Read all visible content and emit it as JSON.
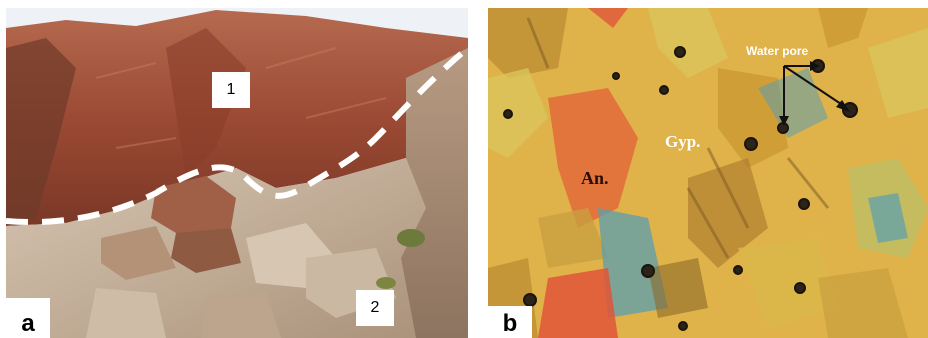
{
  "figure": {
    "panel_a": {
      "letter": "a",
      "zone_labels": [
        "1",
        "2"
      ]
    },
    "panel_b": {
      "letter": "b",
      "mineral_labels": {
        "anhydrite": "An.",
        "gypsum": "Gyp."
      },
      "annotation": "Water pore"
    }
  },
  "colors": {
    "red_sediment": "#9c4a34",
    "rock_beige": "#c9b7a4",
    "sky": "#eef2f6",
    "dashed_line": "#ffffff",
    "micro_background": "#e0b24a",
    "gypsum_red": "#e06a3a",
    "anhydrite_blue": "#5a9fb0"
  }
}
